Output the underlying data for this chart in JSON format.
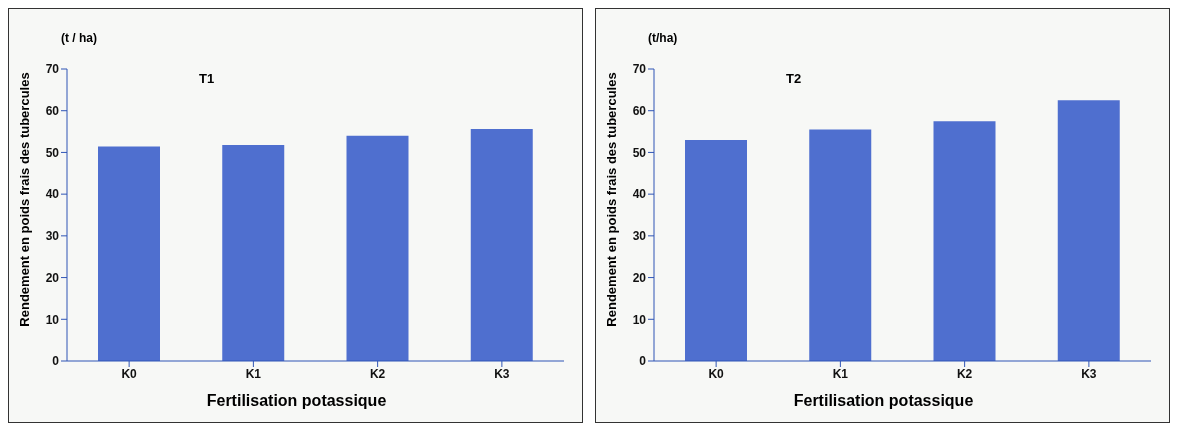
{
  "chart_data": [
    {
      "type": "bar",
      "title": "T1",
      "xlabel": "Fertilisation potassique",
      "ylabel": "Rendement en poids frais des tubercules",
      "annotations": [
        "(t / ha)"
      ],
      "categories": [
        "K0",
        "K1",
        "K2",
        "K3"
      ],
      "values": [
        51.4,
        51.8,
        54,
        55.6
      ],
      "color": "#4f6fcf",
      "ylim": [
        0,
        70
      ],
      "yticks": [
        0,
        10,
        20,
        30,
        40,
        50,
        60,
        70
      ],
      "grid": false,
      "legend": false
    },
    {
      "type": "bar",
      "title": "T2",
      "xlabel": "Fertilisation potassique",
      "ylabel": "Rendement en poids frais des tubercules",
      "annotations": [
        "(t/ha)"
      ],
      "categories": [
        "K0",
        "K1",
        "K2",
        "K3"
      ],
      "values": [
        53,
        55.5,
        57.5,
        62.5
      ],
      "color": "#4f6fcf",
      "ylim": [
        0,
        70
      ],
      "yticks": [
        0,
        10,
        20,
        30,
        40,
        50,
        60,
        70
      ],
      "grid": false,
      "legend": false
    }
  ]
}
